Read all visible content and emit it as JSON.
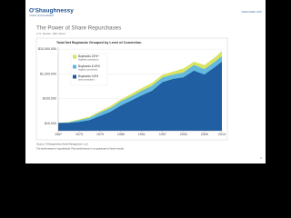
{
  "header": {
    "logo": "O'Shaughnessy",
    "logo_sub": "ASSET MANAGEMENT",
    "url": "www.osam.com"
  },
  "slide": {
    "title": "The Power of Share Repurchases",
    "subtitle": "U.S. Stocks, 1967-2014"
  },
  "chart_data": {
    "type": "area",
    "title": "Total Net Buybacks Grouped by Level of Conviction",
    "x": [
      1967,
      1970,
      1973,
      1976,
      1979,
      1982,
      1985,
      1988,
      1991,
      1994,
      1997,
      2000,
      2003,
      2006,
      2009,
      2012,
      2014
    ],
    "series": [
      {
        "name": "Buybacks 15%+",
        "note_label": "(highest conviction)",
        "color": "#d7e35a",
        "values": [
          10000,
          11000,
          14000,
          18000,
          30000,
          48000,
          90000,
          150000,
          260000,
          420000,
          900000,
          1200000,
          1600000,
          3000000,
          2200000,
          4500000,
          8000000
        ]
      },
      {
        "name": "Buybacks 8-15%",
        "note_label": "(higher conviction)",
        "color": "#5fb6e6",
        "values": [
          10000,
          10500,
          13000,
          16000,
          26000,
          40000,
          75000,
          120000,
          200000,
          320000,
          700000,
          900000,
          1100000,
          2200000,
          1500000,
          3000000,
          5000000
        ]
      },
      {
        "name": "Buybacks 0-8%",
        "note_label": "(low conviction)",
        "color": "#1c5a9e",
        "values": [
          10000,
          10000,
          11000,
          13000,
          19000,
          28000,
          50000,
          80000,
          130000,
          200000,
          450000,
          600000,
          700000,
          1300000,
          900000,
          1800000,
          3000000
        ]
      }
    ],
    "log_scale": true,
    "xlim": [
      1967,
      2014
    ],
    "xticks": [
      1967,
      1973,
      1979,
      1985,
      1991,
      1997,
      2003,
      2009,
      2014
    ],
    "ylim": [
      5000,
      12000000
    ],
    "yticks": [
      {
        "value": 10000,
        "label": "$10,000"
      },
      {
        "value": 100000,
        "label": "$100,000"
      },
      {
        "value": 1000000,
        "label": "$1,000,000"
      },
      {
        "value": 10000000,
        "label": "$10,000,000"
      }
    ],
    "grid": true,
    "legend": "upper-left",
    "source": "Source: O'Shaughnessy Asset Management, LLC",
    "disclaimer": "The performance is hypothetical. Past performance is no guarantee of future results."
  },
  "footer": {
    "page": "6"
  }
}
